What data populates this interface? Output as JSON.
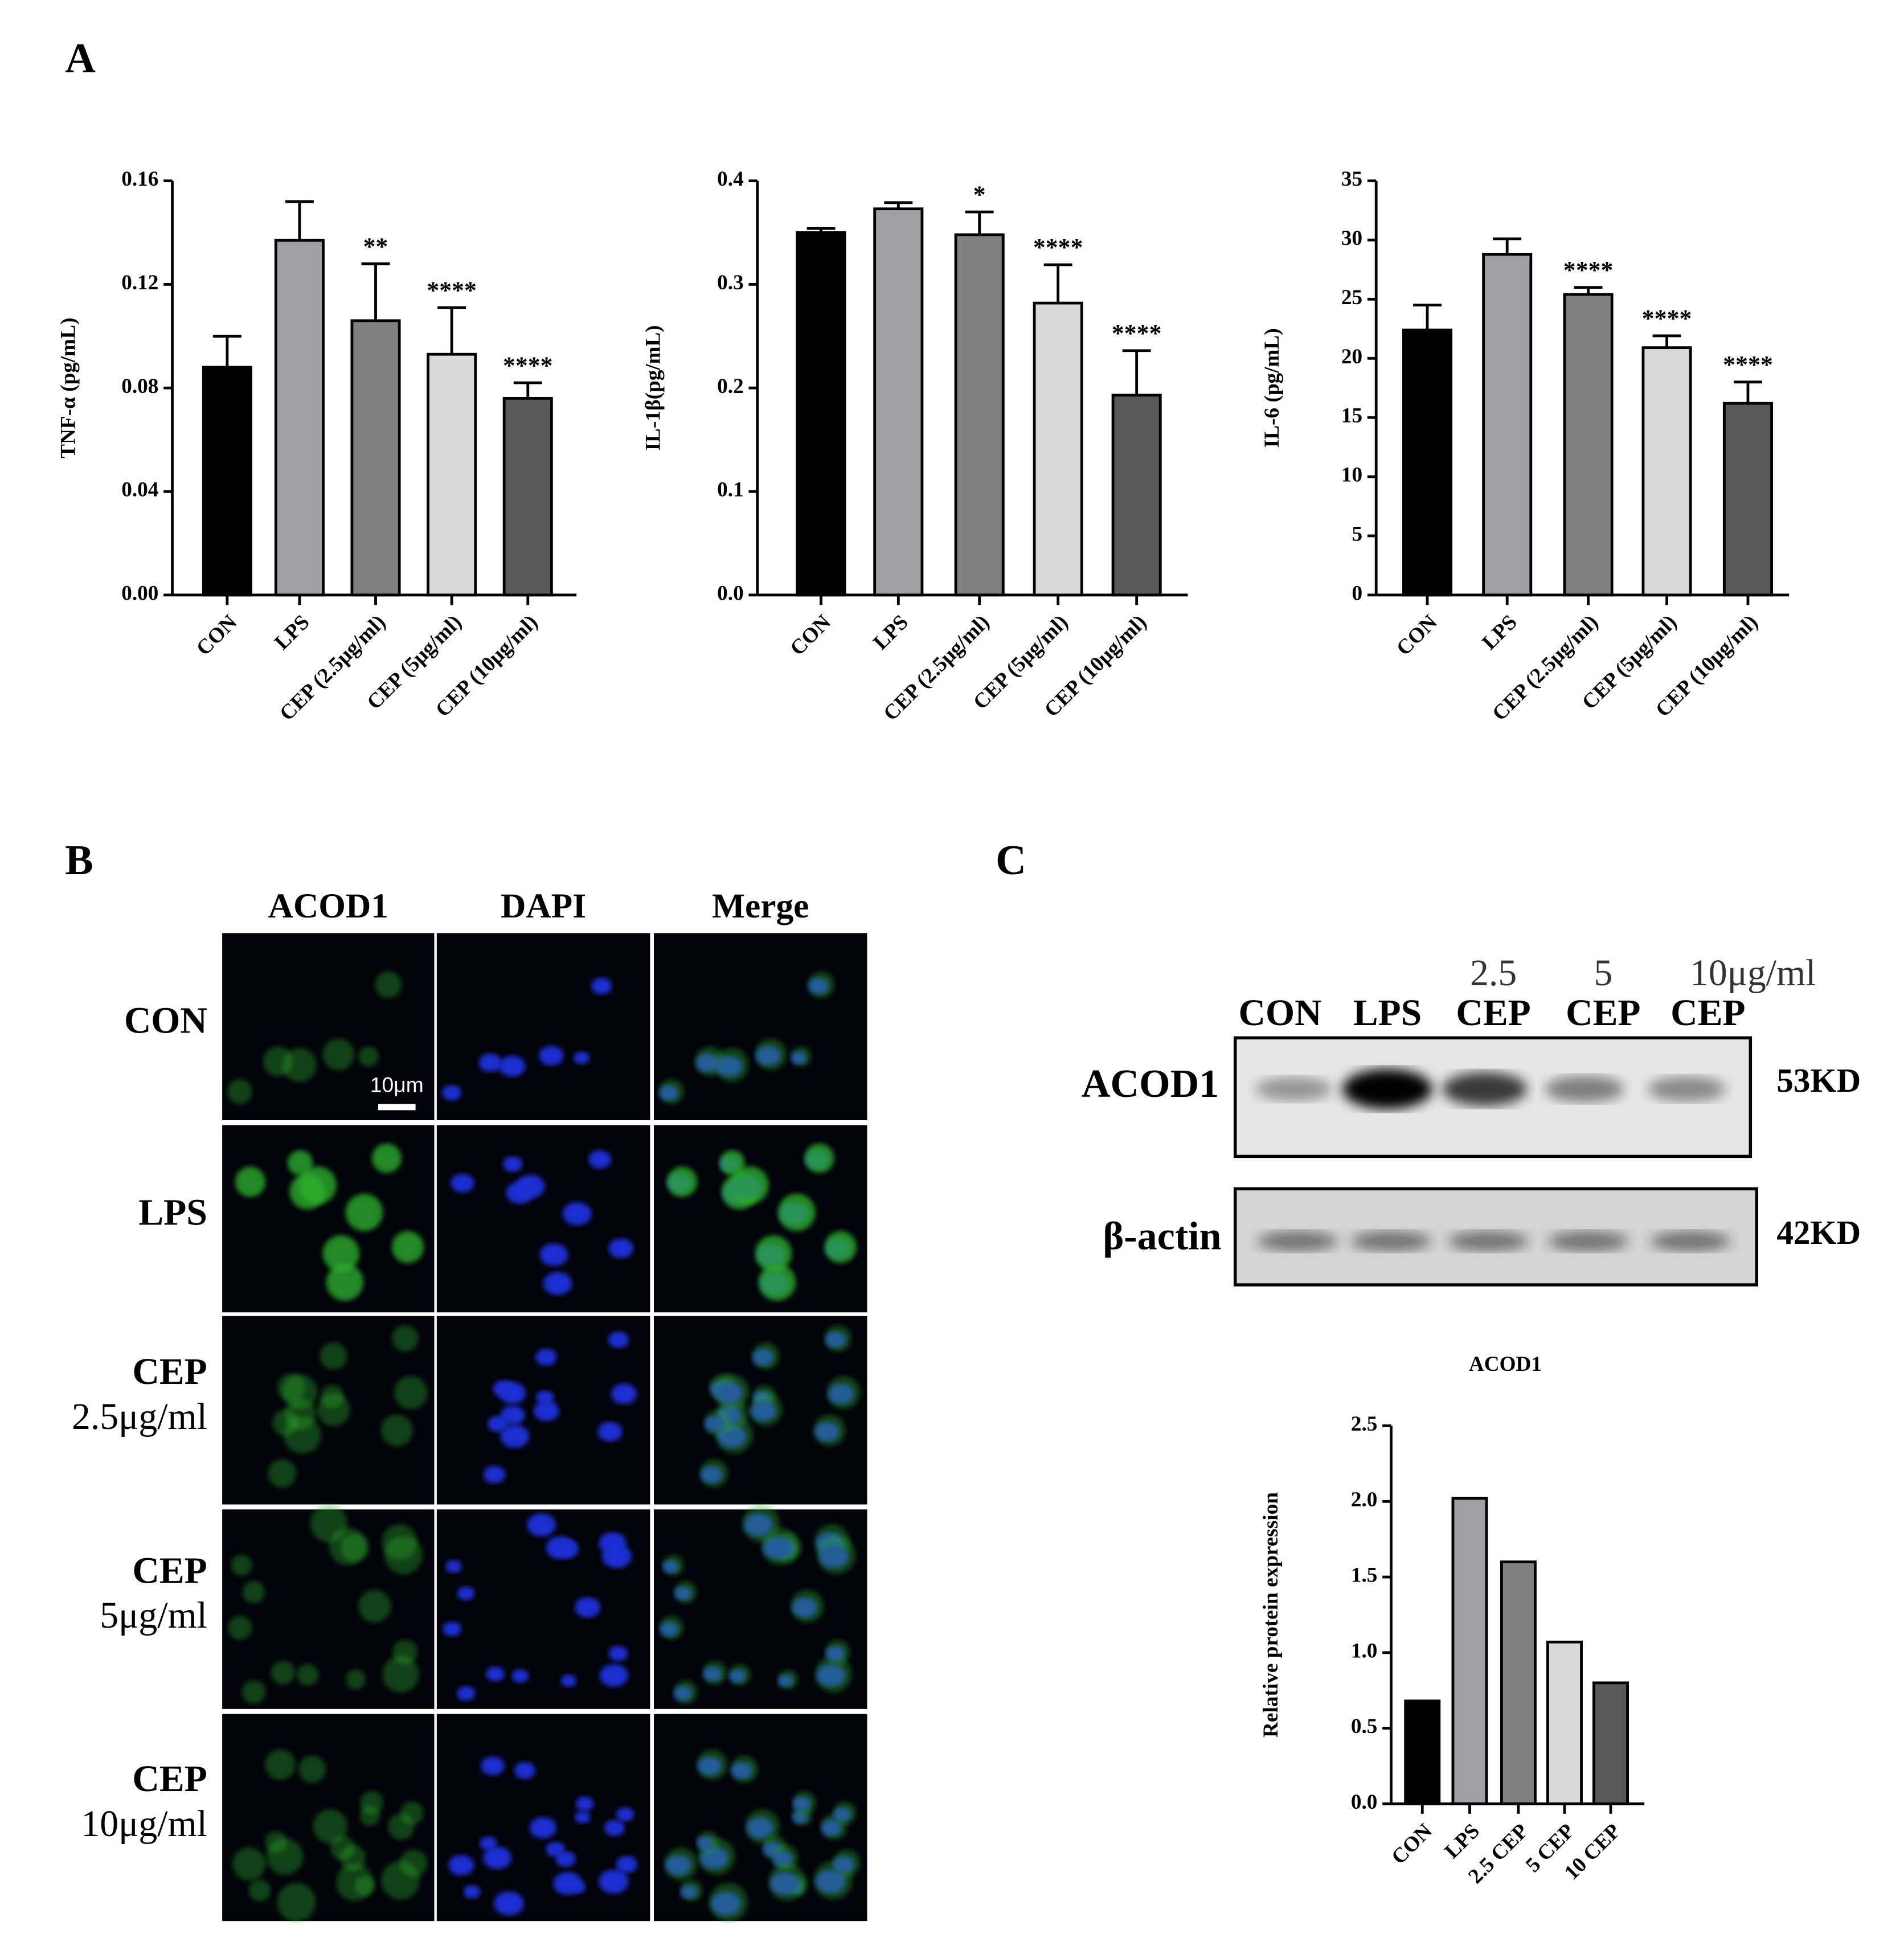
{
  "chart_data": [
    {
      "type": "bar",
      "ylabel": "TNF-α (pg/mL)",
      "categories": [
        "CON",
        "LPS",
        "CEP (2.5μg/ml)",
        "CEP (5μg/ml)",
        "CEP (10μg/ml)"
      ],
      "values": [
        0.088,
        0.137,
        0.106,
        0.093,
        0.076
      ],
      "errors": [
        0.012,
        0.015,
        0.022,
        0.018,
        0.006
      ],
      "annotations": [
        null,
        null,
        "**",
        "****",
        "****"
      ],
      "colors": [
        "#000000",
        "#a0a0a4",
        "#808080",
        "#d9d9d9",
        "#595959"
      ],
      "ylim": [
        0,
        0.16
      ],
      "yticks": [
        {
          "value": 0,
          "label": "0.00"
        },
        0.04,
        0.08,
        0.12,
        0.16
      ]
    },
    {
      "type": "bar",
      "ylabel": "IL-1β(pg/mL)",
      "categories": [
        "CON",
        "LPS",
        "CEP (2.5μg/ml)",
        "CEP (5μg/ml)",
        "CEP (10μg/ml)"
      ],
      "values": [
        0.35,
        0.373,
        0.348,
        0.282,
        0.193
      ],
      "errors": [
        0.004,
        0.006,
        0.022,
        0.037,
        0.043
      ],
      "annotations": [
        null,
        null,
        "*",
        "****",
        "****"
      ],
      "colors": [
        "#000000",
        "#a0a0a4",
        "#808080",
        "#d9d9d9",
        "#595959"
      ],
      "ylim": [
        0,
        0.4
      ],
      "yticks": [
        {
          "value": 0,
          "label": "0.0"
        },
        0.1,
        0.2,
        0.3,
        0.4
      ]
    },
    {
      "type": "bar",
      "ylabel": "IL-6 (pg/mL)",
      "categories": [
        "CON",
        "LPS",
        "CEP (2.5μg/ml)",
        "CEP (5μg/ml)",
        "CEP (10μg/ml)"
      ],
      "values": [
        22.4,
        28.8,
        25.4,
        20.9,
        16.2
      ],
      "errors": [
        2.1,
        1.3,
        0.6,
        1.0,
        1.8
      ],
      "annotations": [
        null,
        null,
        "****",
        "****",
        "****"
      ],
      "colors": [
        "#000000",
        "#a0a0a4",
        "#808080",
        "#d9d9d9",
        "#595959"
      ],
      "ylim": [
        0,
        35
      ],
      "yticks": [
        0,
        5,
        10,
        15,
        20,
        25,
        30,
        35
      ]
    },
    {
      "type": "bar",
      "title": "ACOD1",
      "ylabel": "Relative protein expression",
      "categories": [
        "CON",
        "LPS",
        "2.5 CEP",
        "5 CEP",
        "10 CEP"
      ],
      "values": [
        0.68,
        2.02,
        1.6,
        1.07,
        0.8
      ],
      "colors": [
        "#000000",
        "#a0a0a4",
        "#808080",
        "#d9d9d9",
        "#595959"
      ],
      "ylim": [
        0,
        2.5
      ],
      "yticks": [
        {
          "value": 0,
          "label": "0.0"
        },
        0.5,
        {
          "value": 1,
          "label": "1.0"
        },
        1.5,
        {
          "value": 2,
          "label": "2.0"
        },
        2.5
      ]
    }
  ],
  "figure": {
    "panel_labels": [
      "A",
      "B",
      "C"
    ],
    "microscopy": {
      "columns": [
        "ACOD1",
        "DAPI",
        "Merge"
      ],
      "rows": [
        {
          "label": "CON"
        },
        {
          "label": "LPS"
        },
        {
          "label": "CEP",
          "sublabel": "2.5μg/ml"
        },
        {
          "label": "CEP",
          "sublabel": "5μg/ml"
        },
        {
          "label": "CEP",
          "sublabel": "10μg/ml"
        }
      ],
      "scale_bar": "10μm"
    },
    "blot": {
      "lane_doses": [
        "2.5",
        "5",
        "10μg/ml"
      ],
      "lanes": [
        "CON",
        "LPS",
        "CEP",
        "CEP",
        "CEP"
      ],
      "proteins": [
        {
          "name": "ACOD1",
          "size": "53KD"
        },
        {
          "name": "β-actin",
          "size": "42KD"
        }
      ]
    }
  }
}
